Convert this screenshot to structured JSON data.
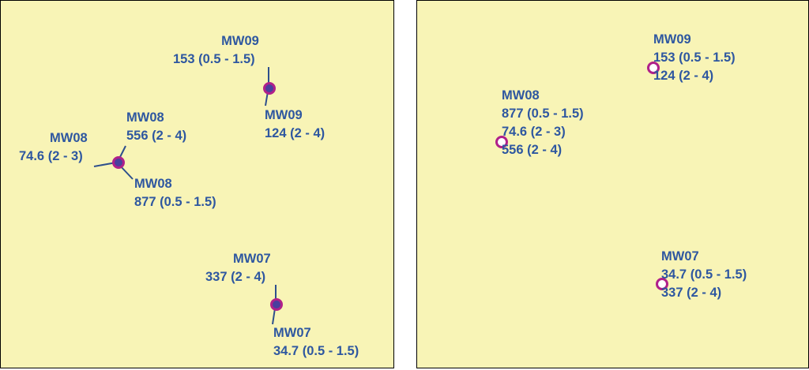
{
  "colors": {
    "background": "#f8f4b6",
    "label_text": "#2e57a0",
    "leader_line": "#2e4f8c",
    "well_marker": "#b0208a"
  },
  "left_map": {
    "labels": {
      "mw09_top": {
        "name": "MW09",
        "value": "153 (0.5 - 1.5)"
      },
      "mw09_bottom": {
        "name": "MW09",
        "value": "124 (2 - 4)"
      },
      "mw08_upper": {
        "name": "MW08",
        "value": "556 (2 - 4)"
      },
      "mw08_left": {
        "name": "MW08",
        "value": "74.6 (2 - 3)"
      },
      "mw08_lower": {
        "name": "MW08",
        "value": "877 (0.5 - 1.5)"
      },
      "mw07_top": {
        "name": "MW07",
        "value": "337 (2 - 4)"
      },
      "mw07_bottom": {
        "name": "MW07",
        "value": "34.7 (0.5 - 1.5)"
      }
    }
  },
  "right_map": {
    "labels": {
      "mw09": {
        "name": "MW09",
        "lines": [
          "153 (0.5 - 1.5)",
          "124 (2 - 4)"
        ]
      },
      "mw08": {
        "name": "MW08",
        "lines": [
          "877 (0.5 - 1.5)",
          "74.6 (2 - 3)",
          "556 (2 - 4)"
        ]
      },
      "mw07": {
        "name": "MW07",
        "lines": [
          "34.7 (0.5 - 1.5)",
          "337 (2 - 4)"
        ]
      }
    }
  }
}
